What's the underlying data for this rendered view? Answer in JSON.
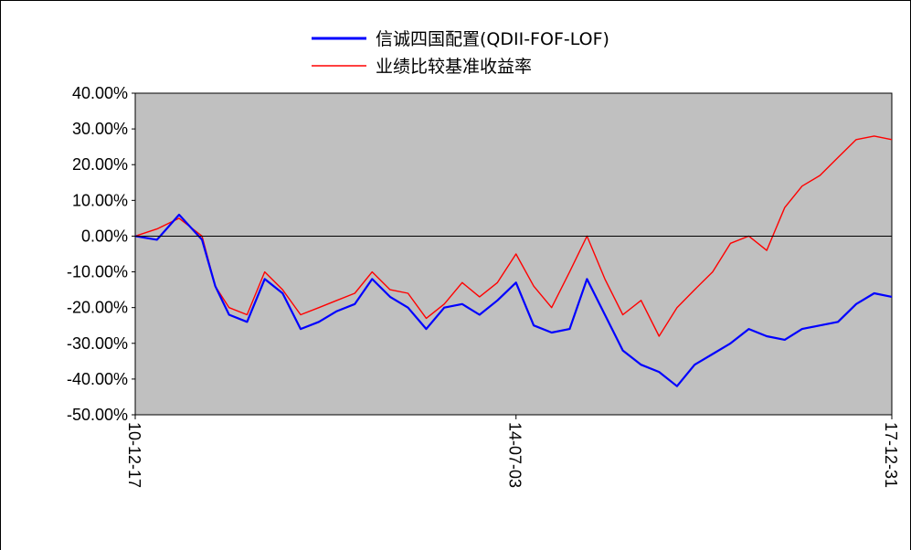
{
  "chart_data": {
    "type": "line",
    "title": "",
    "xlabel": "",
    "ylabel": "",
    "ylim": [
      -50,
      40
    ],
    "yticks": [
      "40.00%",
      "30.00%",
      "20.00%",
      "10.00%",
      "0.00%",
      "-10.00%",
      "-20.00%",
      "-30.00%",
      "-40.00%",
      "-50.00%"
    ],
    "ytick_values": [
      40,
      30,
      20,
      10,
      0,
      -10,
      -20,
      -30,
      -40,
      -50
    ],
    "xticks": [
      "10-12-17",
      "14-07-03",
      "17-12-31"
    ],
    "xlim": [
      "2010-12-17",
      "2017-12-31"
    ],
    "grid": false,
    "zero_line": true,
    "legend_position": "top-center",
    "background_color": "#c0c0c0",
    "x": [
      "2010-12-17",
      "2011-03-01",
      "2011-05-15",
      "2011-08-01",
      "2011-09-15",
      "2011-11-01",
      "2012-01-01",
      "2012-03-01",
      "2012-05-01",
      "2012-07-01",
      "2012-09-01",
      "2012-11-01",
      "2013-01-01",
      "2013-03-01",
      "2013-05-01",
      "2013-07-01",
      "2013-09-01",
      "2013-11-01",
      "2014-01-01",
      "2014-03-01",
      "2014-05-01",
      "2014-07-03",
      "2014-09-01",
      "2014-11-01",
      "2015-01-01",
      "2015-03-01",
      "2015-05-01",
      "2015-07-01",
      "2015-09-01",
      "2015-11-01",
      "2016-01-01",
      "2016-03-01",
      "2016-05-01",
      "2016-07-01",
      "2016-09-01",
      "2016-11-01",
      "2017-01-01",
      "2017-03-01",
      "2017-05-01",
      "2017-07-01",
      "2017-09-01",
      "2017-11-01",
      "2017-12-31"
    ],
    "series": [
      {
        "name": "信诚四国配置(QDII-FOF-LOF)",
        "color": "#0000ff",
        "values": [
          0,
          -1,
          6,
          -1,
          -14,
          -22,
          -24,
          -12,
          -16,
          -26,
          -24,
          -21,
          -19,
          -12,
          -17,
          -20,
          -26,
          -20,
          -19,
          -22,
          -18,
          -13,
          -25,
          -27,
          -26,
          -12,
          -22,
          -32,
          -36,
          -38,
          -42,
          -36,
          -33,
          -30,
          -26,
          -28,
          -29,
          -26,
          -25,
          -24,
          -19,
          -16,
          -17
        ]
      },
      {
        "name": "业绩比较基准收益率",
        "color": "#ff0000",
        "values": [
          0,
          2,
          5,
          0,
          -14,
          -20,
          -22,
          -10,
          -15,
          -22,
          -20,
          -18,
          -16,
          -10,
          -15,
          -16,
          -23,
          -19,
          -13,
          -17,
          -13,
          -5,
          -14,
          -20,
          -10,
          0,
          -12,
          -22,
          -18,
          -28,
          -20,
          -15,
          -10,
          -2,
          0,
          -4,
          8,
          14,
          17,
          22,
          27,
          28,
          27
        ]
      }
    ]
  }
}
